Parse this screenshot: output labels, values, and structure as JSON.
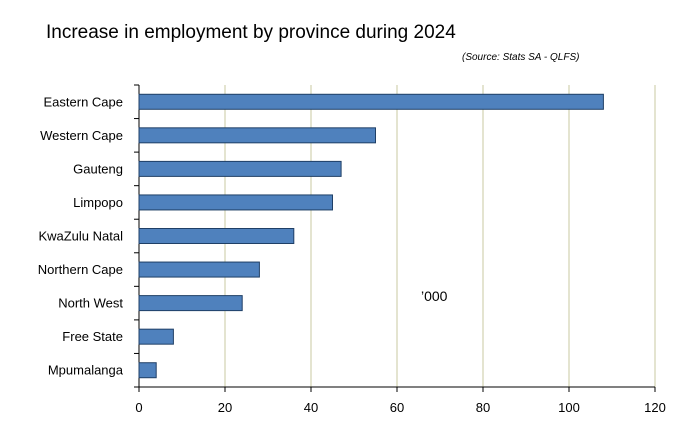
{
  "chart_data": {
    "type": "bar",
    "orientation": "horizontal",
    "title": "Increase in employment by province during 2024",
    "source": "(Source: Stats SA - QLFS)",
    "unit_label": "’000",
    "categories": [
      "Eastern Cape",
      "Western Cape",
      "Gauteng",
      "Limpopo",
      "KwaZulu Natal",
      "Northern Cape",
      "North West",
      "Free State",
      "Mpumalanga"
    ],
    "values": [
      108,
      55,
      47,
      45,
      36,
      28,
      24,
      8,
      4
    ],
    "xlim": [
      0,
      120
    ],
    "xticks": [
      0,
      20,
      40,
      60,
      80,
      100,
      120
    ],
    "grid": "vertical",
    "bar_color": "#4f81bd",
    "bar_edge_color": "#1f3f66",
    "grid_color": "#c8c8a0"
  }
}
